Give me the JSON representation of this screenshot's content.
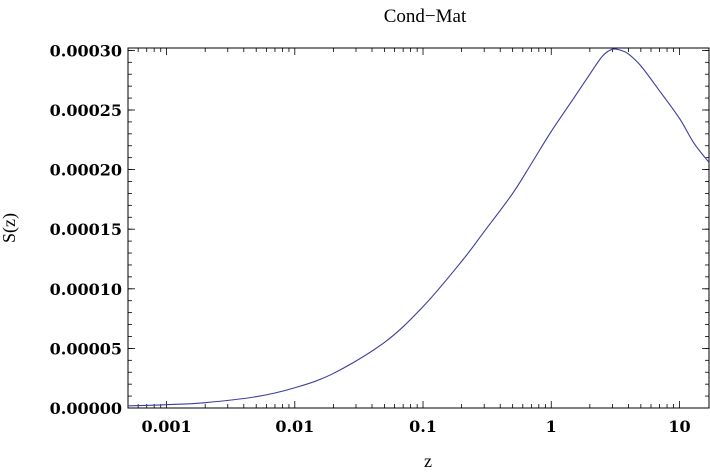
{
  "chart_data": {
    "type": "line",
    "title": "Cond−Mat",
    "xlabel": "z",
    "ylabel": "S(z)",
    "x_scale": "log",
    "xlim": [
      0.0005,
      17
    ],
    "ylim": [
      0.0,
      0.000302
    ],
    "x_ticks": [
      {
        "value": 0.001,
        "label": "0.001"
      },
      {
        "value": 0.01,
        "label": "0.01"
      },
      {
        "value": 0.1,
        "label": "0.1"
      },
      {
        "value": 1,
        "label": "1"
      },
      {
        "value": 10,
        "label": "10"
      }
    ],
    "y_ticks": [
      {
        "value": 0.0,
        "label": "0.00000"
      },
      {
        "value": 5e-05,
        "label": "0.00005"
      },
      {
        "value": 0.0001,
        "label": "0.00010"
      },
      {
        "value": 0.00015,
        "label": "0.00015"
      },
      {
        "value": 0.0002,
        "label": "0.00020"
      },
      {
        "value": 0.00025,
        "label": "0.00025"
      },
      {
        "value": 0.0003,
        "label": "0.00030"
      }
    ],
    "grid": false,
    "series": [
      {
        "color": "#3d3d9e",
        "points": [
          [
            0.0005,
            1.8e-06
          ],
          [
            0.001,
            2.8e-06
          ],
          [
            0.002,
            4.5e-06
          ],
          [
            0.005,
            9.5e-06
          ],
          [
            0.01,
            1.7e-05
          ],
          [
            0.02,
            2.9e-05
          ],
          [
            0.05,
            5.5e-05
          ],
          [
            0.1,
            8.5e-05
          ],
          [
            0.2,
            0.000123
          ],
          [
            0.3,
            0.000148
          ],
          [
            0.5,
            0.00018
          ],
          [
            0.7,
            0.000205
          ],
          [
            1.0,
            0.000232
          ],
          [
            1.5,
            0.00026
          ],
          [
            2.0,
            0.00028
          ],
          [
            2.5,
            0.000295
          ],
          [
            3.0,
            0.000301
          ],
          [
            3.5,
            0.0003
          ],
          [
            4.0,
            0.000297
          ],
          [
            5.0,
            0.000287
          ],
          [
            7.0,
            0.000266
          ],
          [
            10.0,
            0.000243
          ],
          [
            13.0,
            0.000222
          ],
          [
            17.0,
            0.000206
          ]
        ]
      }
    ]
  }
}
